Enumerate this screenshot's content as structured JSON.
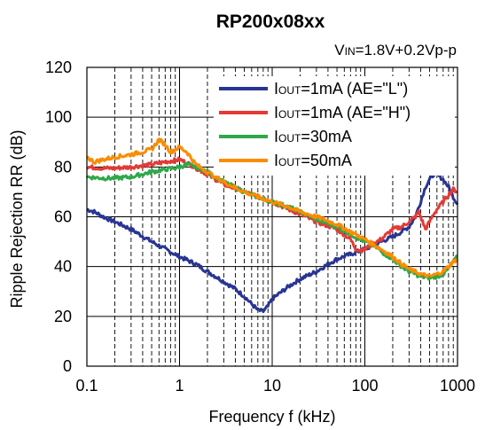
{
  "chart_data": {
    "type": "line",
    "title": "RP200x08xx",
    "condition": {
      "prefix": "V",
      "sub": "IN",
      "text": "=1.8V+0.2Vp-p"
    },
    "xlabel": "Frequency f (kHz)",
    "ylabel": "Ripple Rejection RR (dB)",
    "x_scale": "log",
    "xlim": [
      0.1,
      1000
    ],
    "ylim": [
      0,
      120
    ],
    "xticks": [
      {
        "value": 0.1,
        "label": "0.1"
      },
      {
        "value": 1,
        "label": "1"
      },
      {
        "value": 10,
        "label": "10"
      },
      {
        "value": 100,
        "label": "100"
      },
      {
        "value": 1000,
        "label": "1000"
      }
    ],
    "yticks": [
      {
        "value": 0,
        "label": "0"
      },
      {
        "value": 20,
        "label": "20"
      },
      {
        "value": 40,
        "label": "40"
      },
      {
        "value": 60,
        "label": "60"
      },
      {
        "value": 80,
        "label": "80"
      },
      {
        "value": 100,
        "label": "100"
      },
      {
        "value": 120,
        "label": "120"
      }
    ],
    "grid": true,
    "legend_position": "top-right",
    "series": [
      {
        "legend_prefix": "I",
        "legend_sub": "OUT",
        "legend_text": "=1mA (AE=\"L\")",
        "color": "#283593",
        "points": [
          [
            0.1,
            63
          ],
          [
            0.12,
            62
          ],
          [
            0.15,
            60
          ],
          [
            0.2,
            58
          ],
          [
            0.3,
            55
          ],
          [
            0.5,
            50
          ],
          [
            0.7,
            47
          ],
          [
            1,
            44
          ],
          [
            1.5,
            41
          ],
          [
            2,
            38
          ],
          [
            3,
            34
          ],
          [
            4,
            31
          ],
          [
            5,
            28
          ],
          [
            6,
            25
          ],
          [
            7,
            22.5
          ],
          [
            8,
            22
          ],
          [
            9,
            24
          ],
          [
            10,
            27
          ],
          [
            15,
            32
          ],
          [
            20,
            35
          ],
          [
            30,
            38
          ],
          [
            40,
            41
          ],
          [
            50,
            43
          ],
          [
            70,
            45
          ],
          [
            100,
            47
          ],
          [
            150,
            50
          ],
          [
            200,
            52
          ],
          [
            250,
            54
          ],
          [
            300,
            56
          ],
          [
            350,
            60
          ],
          [
            400,
            66
          ],
          [
            450,
            72
          ],
          [
            500,
            75
          ],
          [
            550,
            77
          ],
          [
            600,
            77
          ],
          [
            700,
            75
          ],
          [
            800,
            72
          ],
          [
            900,
            68
          ],
          [
            1000,
            65
          ]
        ]
      },
      {
        "legend_prefix": "I",
        "legend_sub": "OUT",
        "legend_text": "=1mA (AE=\"H\")",
        "color": "#e53935",
        "points": [
          [
            0.1,
            80
          ],
          [
            0.15,
            79.5
          ],
          [
            0.2,
            79.5
          ],
          [
            0.3,
            80
          ],
          [
            0.5,
            81
          ],
          [
            0.7,
            82
          ],
          [
            1,
            83
          ],
          [
            1.3,
            81
          ],
          [
            1.6,
            79
          ],
          [
            2,
            77
          ],
          [
            3,
            73
          ],
          [
            5,
            70
          ],
          [
            7,
            68
          ],
          [
            10,
            66
          ],
          [
            15,
            63
          ],
          [
            20,
            61
          ],
          [
            30,
            58
          ],
          [
            50,
            55
          ],
          [
            70,
            51
          ],
          [
            80,
            47
          ],
          [
            90,
            46.5
          ],
          [
            100,
            47
          ],
          [
            120,
            49
          ],
          [
            150,
            51
          ],
          [
            200,
            55
          ],
          [
            250,
            56
          ],
          [
            300,
            58
          ],
          [
            350,
            60
          ],
          [
            380,
            62
          ],
          [
            420,
            58
          ],
          [
            450,
            55
          ],
          [
            500,
            58
          ],
          [
            550,
            61
          ],
          [
            600,
            63
          ],
          [
            700,
            66
          ],
          [
            800,
            69
          ],
          [
            900,
            71
          ],
          [
            1000,
            70
          ]
        ]
      },
      {
        "legend_prefix": "I",
        "legend_sub": "OUT",
        "legend_text": "=30mA",
        "color": "#2ea84a",
        "points": [
          [
            0.1,
            76
          ],
          [
            0.15,
            75.5
          ],
          [
            0.2,
            75.5
          ],
          [
            0.3,
            76
          ],
          [
            0.5,
            78
          ],
          [
            0.7,
            79
          ],
          [
            1,
            80
          ],
          [
            1.2,
            81
          ],
          [
            1.5,
            80
          ],
          [
            2,
            78
          ],
          [
            3,
            74
          ],
          [
            5,
            70
          ],
          [
            7,
            68
          ],
          [
            10,
            66
          ],
          [
            15,
            64
          ],
          [
            20,
            62
          ],
          [
            30,
            59
          ],
          [
            50,
            56
          ],
          [
            70,
            53
          ],
          [
            100,
            50
          ],
          [
            130,
            48
          ],
          [
            150,
            46
          ],
          [
            200,
            43
          ],
          [
            250,
            40
          ],
          [
            300,
            38
          ],
          [
            400,
            36
          ],
          [
            500,
            35.5
          ],
          [
            600,
            36
          ],
          [
            700,
            37
          ],
          [
            800,
            39
          ],
          [
            900,
            42
          ],
          [
            1000,
            44
          ]
        ]
      },
      {
        "legend_prefix": "I",
        "legend_sub": "OUT",
        "legend_text": "=50mA",
        "color": "#fb8c00",
        "points": [
          [
            0.1,
            84
          ],
          [
            0.12,
            82
          ],
          [
            0.15,
            83
          ],
          [
            0.2,
            84
          ],
          [
            0.3,
            85
          ],
          [
            0.5,
            87
          ],
          [
            0.6,
            91
          ],
          [
            0.7,
            89
          ],
          [
            0.8,
            86
          ],
          [
            1,
            88
          ],
          [
            1.2,
            86
          ],
          [
            1.5,
            81
          ],
          [
            2,
            78
          ],
          [
            3,
            74
          ],
          [
            5,
            70
          ],
          [
            7,
            68
          ],
          [
            10,
            66
          ],
          [
            15,
            64
          ],
          [
            20,
            62
          ],
          [
            30,
            60
          ],
          [
            50,
            57
          ],
          [
            70,
            54
          ],
          [
            100,
            51
          ],
          [
            150,
            47
          ],
          [
            200,
            44
          ],
          [
            250,
            41
          ],
          [
            300,
            39
          ],
          [
            400,
            37
          ],
          [
            500,
            36
          ],
          [
            600,
            37
          ],
          [
            700,
            38
          ],
          [
            800,
            40
          ],
          [
            900,
            42
          ],
          [
            1000,
            43
          ]
        ]
      }
    ]
  }
}
